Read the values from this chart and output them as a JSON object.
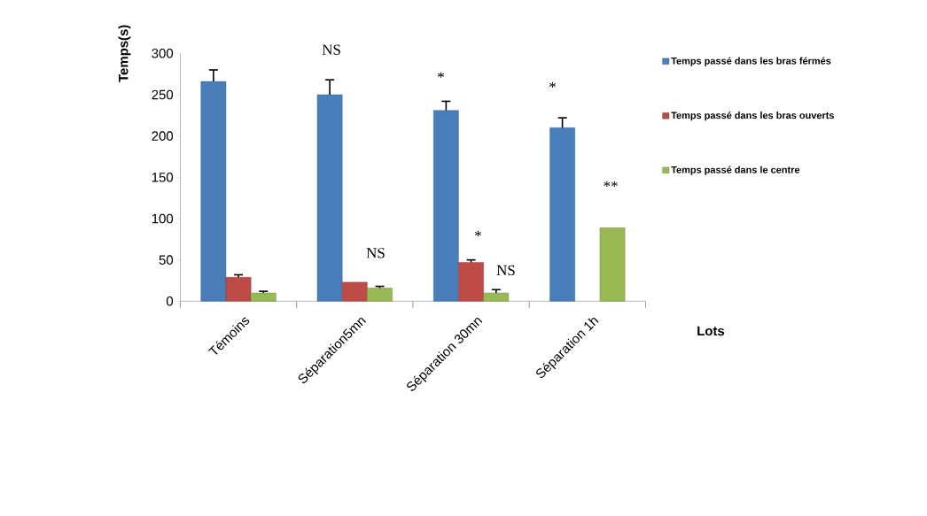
{
  "chart_data": {
    "type": "bar",
    "ylabel": "Temps(s)",
    "xlabel": "Lots",
    "categories": [
      "Témoins",
      "Séparation5mn",
      "Séparation 30mn",
      "Séparation 1h"
    ],
    "series": [
      {
        "name": "Temps passé dans les bras férmés",
        "color": "#4a7ebb",
        "values": [
          266,
          250,
          231,
          210
        ],
        "errors": [
          14,
          18,
          11,
          12
        ]
      },
      {
        "name": "Temps passé dans les bras ouverts",
        "color": "#be4b48",
        "values": [
          29,
          23,
          47,
          null
        ],
        "errors": [
          3,
          null,
          3,
          null
        ]
      },
      {
        "name": "Temps passé dans le centre",
        "color": "#98b954",
        "values": [
          10,
          16,
          10,
          89
        ],
        "errors": [
          2,
          2,
          4,
          null
        ]
      }
    ],
    "ylim": [
      0,
      300
    ],
    "yticks": [
      0,
      50,
      100,
      150,
      200,
      250,
      300
    ],
    "grid": false,
    "legend": "right",
    "annotations": [
      "NS",
      "NS",
      "*",
      "*",
      "NS",
      "*",
      "**"
    ]
  }
}
